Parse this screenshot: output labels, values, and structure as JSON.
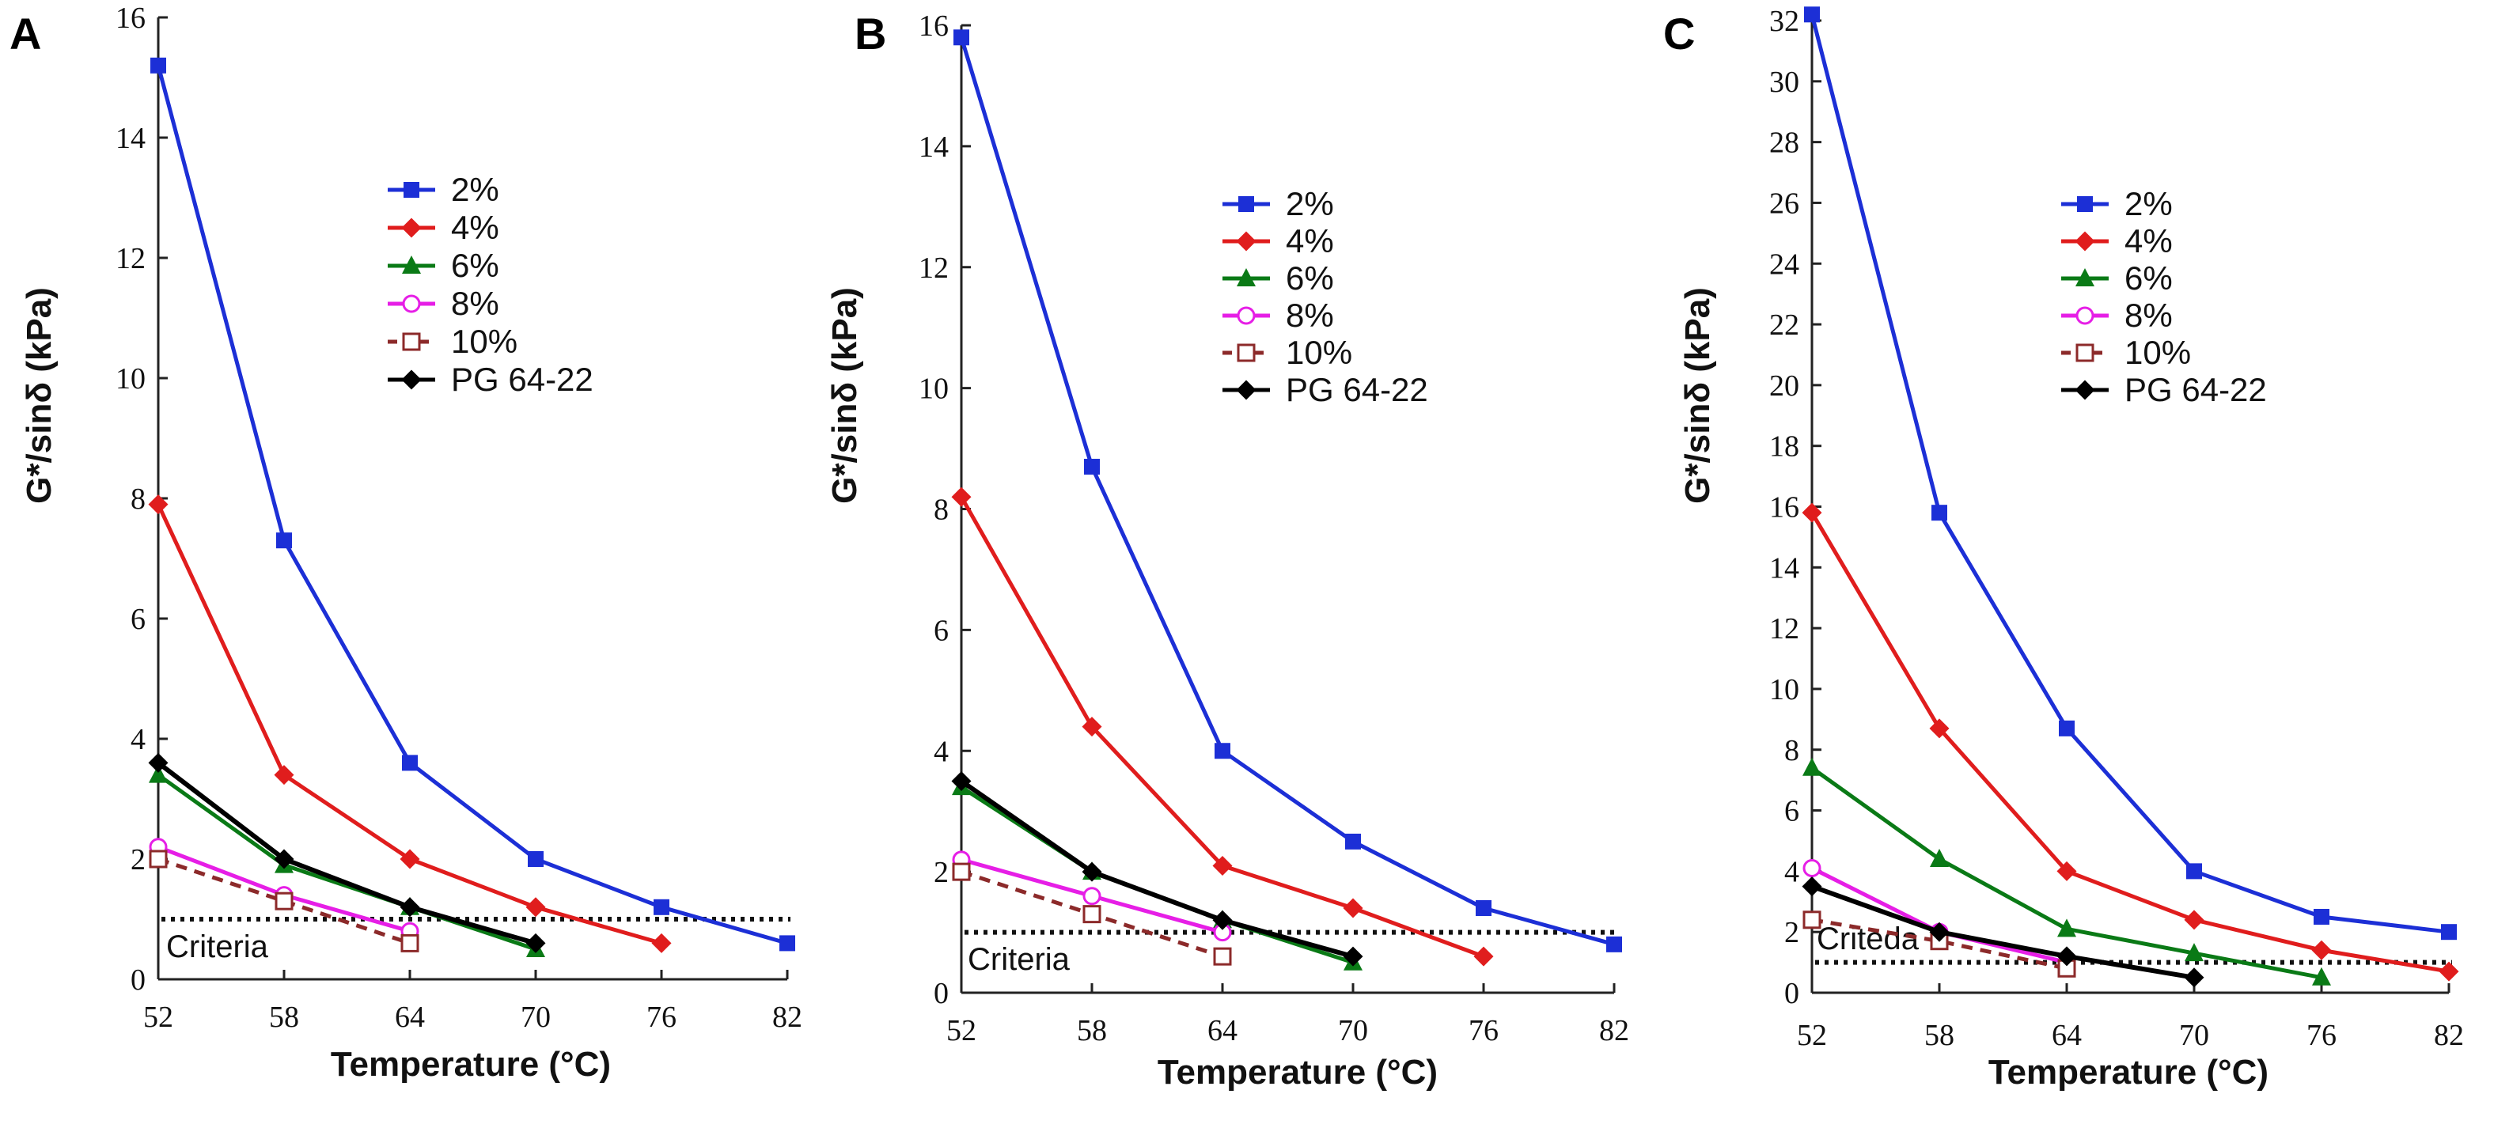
{
  "chart_data": [
    {
      "type": "line",
      "panel": "A",
      "x": [
        52,
        58,
        64,
        70,
        76,
        82
      ],
      "xlabel": "Temperature (°C)",
      "ylabel": "G*/sinδ (kPa)",
      "xlim": [
        52,
        82
      ],
      "ylim": [
        0,
        16
      ],
      "yticks": [
        0,
        2,
        4,
        6,
        8,
        10,
        12,
        14,
        16
      ],
      "criteria": {
        "value": 1.0,
        "label": "Criteria"
      },
      "legend_position": "top-right",
      "series": [
        {
          "name": "2%",
          "marker": "square",
          "color": "#1c2fd6",
          "values": [
            15.2,
            7.3,
            3.6,
            2.0,
            1.2,
            0.6
          ]
        },
        {
          "name": "4%",
          "marker": "diamond",
          "color": "#e01d1d",
          "values": [
            7.9,
            3.4,
            2.0,
            1.2,
            0.6,
            null
          ]
        },
        {
          "name": "6%",
          "marker": "triangle",
          "color": "#0a7a16",
          "values": [
            3.4,
            1.9,
            1.2,
            0.5,
            null,
            null
          ]
        },
        {
          "name": "8%",
          "marker": "circle-open",
          "color": "#e61ee6",
          "values": [
            2.2,
            1.4,
            0.8,
            null,
            null,
            null
          ]
        },
        {
          "name": "10%",
          "marker": "square-open",
          "color": "#8c2a2a",
          "values": [
            2.0,
            1.3,
            0.6,
            null,
            null,
            null
          ]
        },
        {
          "name": "PG 64-22",
          "marker": "diamond",
          "color": "#000000",
          "values": [
            3.6,
            2.0,
            1.2,
            0.6,
            null,
            null
          ]
        }
      ]
    },
    {
      "type": "line",
      "panel": "B",
      "x": [
        52,
        58,
        64,
        70,
        76,
        82
      ],
      "xlabel": "Temperature (°C)",
      "ylabel": "G*/sinδ (kPa)",
      "xlim": [
        52,
        82
      ],
      "ylim": [
        0,
        16
      ],
      "yticks": [
        0,
        2,
        4,
        6,
        8,
        10,
        12,
        14,
        16
      ],
      "criteria": {
        "value": 1.0,
        "label": "Criteria"
      },
      "legend_position": "top-right",
      "series": [
        {
          "name": "2%",
          "marker": "square",
          "color": "#1c2fd6",
          "values": [
            15.8,
            8.7,
            4.0,
            2.5,
            1.4,
            0.8
          ]
        },
        {
          "name": "4%",
          "marker": "diamond",
          "color": "#e01d1d",
          "values": [
            8.2,
            4.4,
            2.1,
            1.4,
            0.6,
            null
          ]
        },
        {
          "name": "6%",
          "marker": "triangle",
          "color": "#0a7a16",
          "values": [
            3.4,
            2.0,
            1.2,
            0.5,
            null,
            null
          ]
        },
        {
          "name": "8%",
          "marker": "circle-open",
          "color": "#e61ee6",
          "values": [
            2.2,
            1.6,
            1.0,
            null,
            null,
            null
          ]
        },
        {
          "name": "10%",
          "marker": "square-open",
          "color": "#8c2a2a",
          "values": [
            2.0,
            1.3,
            0.6,
            null,
            null,
            null
          ]
        },
        {
          "name": "PG 64-22",
          "marker": "diamond",
          "color": "#000000",
          "values": [
            3.5,
            2.0,
            1.2,
            0.6,
            null,
            null
          ]
        }
      ]
    },
    {
      "type": "line",
      "panel": "C",
      "x": [
        52,
        58,
        64,
        70,
        76,
        82
      ],
      "xlabel": "Temperature (°C)",
      "ylabel": "G*/sinδ (kPa)",
      "xlim": [
        52,
        82
      ],
      "ylim": [
        0,
        32
      ],
      "yticks": [
        0,
        2,
        4,
        6,
        8,
        10,
        12,
        14,
        16,
        18,
        20,
        22,
        24,
        26,
        28,
        30,
        32
      ],
      "criteria": {
        "value": 1.0,
        "label": "Criteda"
      },
      "legend_position": "top-right",
      "series": [
        {
          "name": "2%",
          "marker": "square",
          "color": "#1c2fd6",
          "values": [
            32.2,
            15.8,
            8.7,
            4.0,
            2.5,
            2.0
          ]
        },
        {
          "name": "4%",
          "marker": "diamond",
          "color": "#e01d1d",
          "values": [
            15.8,
            8.7,
            4.0,
            2.4,
            1.4,
            0.7
          ]
        },
        {
          "name": "6%",
          "marker": "triangle",
          "color": "#0a7a16",
          "values": [
            7.4,
            4.4,
            2.1,
            1.3,
            0.5,
            null
          ]
        },
        {
          "name": "8%",
          "marker": "circle-open",
          "color": "#e61ee6",
          "values": [
            4.1,
            2.0,
            1.0,
            null,
            null,
            null
          ]
        },
        {
          "name": "10%",
          "marker": "square-open",
          "color": "#8c2a2a",
          "values": [
            2.4,
            1.7,
            0.8,
            null,
            null,
            null
          ]
        },
        {
          "name": "PG 64-22",
          "marker": "diamond",
          "color": "#000000",
          "values": [
            3.5,
            2.0,
            1.2,
            0.5,
            null,
            null
          ]
        }
      ]
    }
  ]
}
